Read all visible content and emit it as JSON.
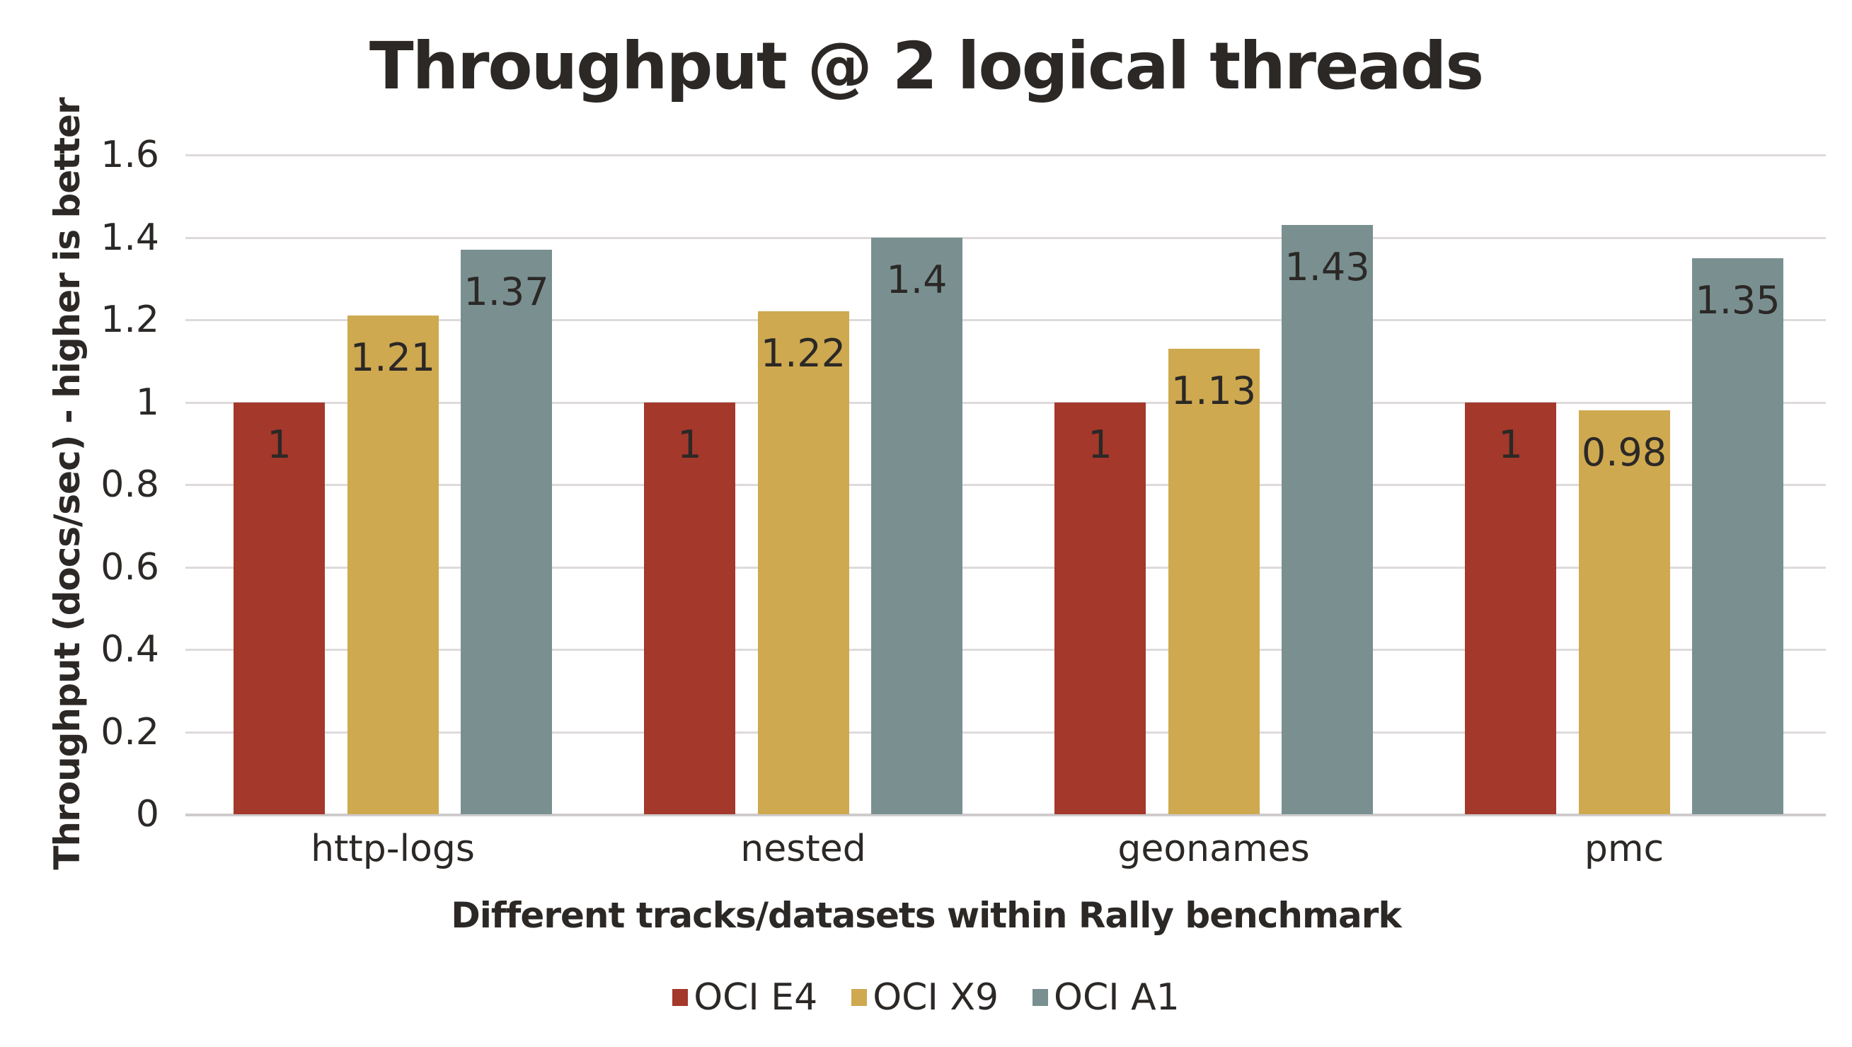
{
  "chart_data": {
    "type": "bar",
    "title": "Throughput @ 2 logical threads",
    "xlabel": "Different tracks/datasets within Rally benchmark",
    "ylabel": "Throughput (docs/sec) - higher is better",
    "ylim": [
      0,
      1.6
    ],
    "yticks": [
      "0",
      "0.2",
      "0.4",
      "0.6",
      "0.8",
      "1",
      "1.2",
      "1.4",
      "1.6"
    ],
    "grid": true,
    "legend_position": "bottom",
    "categories": [
      "http-logs",
      "nested",
      "geonames",
      "pmc"
    ],
    "series": [
      {
        "name": "OCI E4",
        "color": "#a3382b",
        "values": [
          1,
          1,
          1,
          1
        ],
        "labels": [
          "1",
          "1",
          "1",
          "1"
        ]
      },
      {
        "name": "OCI X9",
        "color": "#cea950",
        "values": [
          1.21,
          1.22,
          1.13,
          0.98
        ],
        "labels": [
          "1.21",
          "1.22",
          "1.13",
          "0.98"
        ]
      },
      {
        "name": "OCI A1",
        "color": "#7a9090",
        "values": [
          1.37,
          1.4,
          1.43,
          1.35
        ],
        "labels": [
          "1.37",
          "1.4",
          "1.43",
          "1.35"
        ]
      }
    ]
  }
}
